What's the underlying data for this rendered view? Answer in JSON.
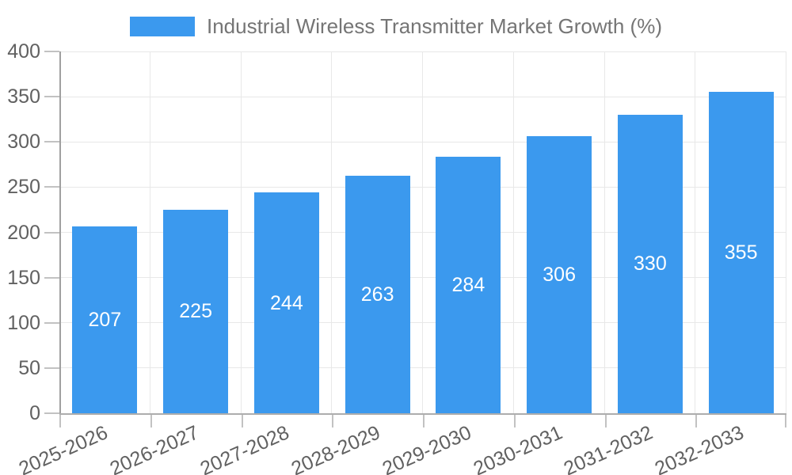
{
  "chart_data": {
    "type": "bar",
    "title": "Industrial Wireless Transmitter Market Growth (%)",
    "categories": [
      "2025-2026",
      "2026-2027",
      "2027-2028",
      "2028-2029",
      "2029-2030",
      "2030-2031",
      "2031-2032",
      "2032-2033"
    ],
    "values": [
      207,
      225,
      244,
      263,
      284,
      306,
      330,
      355
    ],
    "yticks": [
      0,
      50,
      100,
      150,
      200,
      250,
      300,
      350,
      400
    ],
    "ylim": [
      0,
      400
    ],
    "xlabel": "",
    "ylabel": "",
    "grid": true,
    "legend_position": "top",
    "bar_color": "#3b99ee",
    "value_label_color": "#ffffff"
  }
}
